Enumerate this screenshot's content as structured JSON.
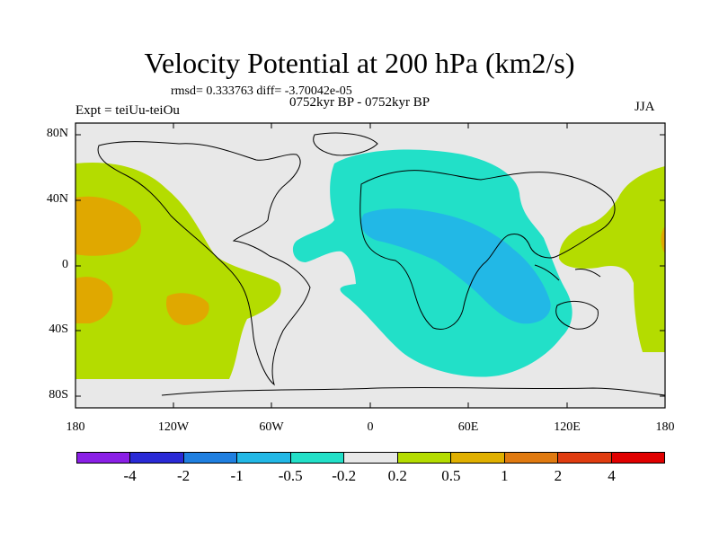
{
  "title": "Velocity Potential at 200 hPa (km2/s)",
  "stats": "rmsd= 0.333763  diff= -3.70042e-05",
  "period": "0752kyr BP - 0752kyr BP",
  "experiment": "Expt = teiUu-teiOu",
  "season": "JJA",
  "y_ticks": [
    "80N",
    "40N",
    "0",
    "40S",
    "80S"
  ],
  "x_ticks": [
    "180",
    "120W",
    "60W",
    "0",
    "60E",
    "120E",
    "180"
  ],
  "colorbar": {
    "colors": [
      "#8a1fe6",
      "#2a2ad6",
      "#1f7fe0",
      "#22b8e6",
      "#22e0c8",
      "#e8e8e8",
      "#b4dc00",
      "#e0b000",
      "#e07a10",
      "#e03c10",
      "#e00000"
    ],
    "labels": [
      "-4",
      "-2",
      "-1",
      "-0.5",
      "-0.2",
      "0.2",
      "0.5",
      "1",
      "2",
      "4"
    ]
  },
  "map_colors": {
    "background": "#e8e8e8",
    "positive_weak": "#b4dc00",
    "positive_mid": "#e0a800",
    "negative_weak": "#22e0c8",
    "negative_mid": "#22b8e6"
  }
}
